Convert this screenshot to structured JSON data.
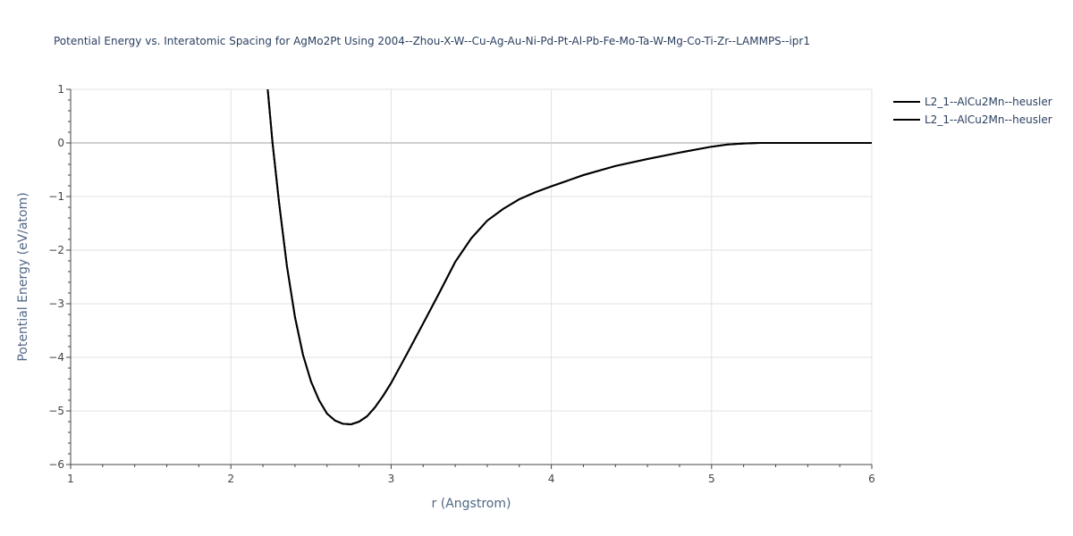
{
  "chart_data": {
    "type": "line",
    "title": "Potential Energy vs. Interatomic Spacing for AgMo2Pt Using 2004--Zhou-X-W--Cu-Ag-Au-Ni-Pd-Pt-Al-Pb-Fe-Mo-Ta-W-Mg-Co-Ti-Zr--LAMMPS--ipr1",
    "xlabel": "r (Angstrom)",
    "ylabel": "Potential Energy (eV/atom)",
    "xlim": [
      1,
      6
    ],
    "ylim": [
      -6,
      1
    ],
    "xticks": [
      1,
      2,
      3,
      4,
      5,
      6
    ],
    "xtick_labels": [
      "1",
      "2",
      "3",
      "4",
      "5",
      "6"
    ],
    "yticks": [
      1,
      0,
      -1,
      -2,
      -3,
      -4,
      -5,
      -6
    ],
    "ytick_labels": [
      "1",
      "0",
      "−1",
      "−2",
      "−3",
      "−4",
      "−5",
      "−6"
    ],
    "grid": true,
    "legend_position": "top-right",
    "series": [
      {
        "name": "L2_1--AlCu2Mn--heusler",
        "color": "#000000",
        "x": [
          2.23,
          2.26,
          2.3,
          2.35,
          2.4,
          2.45,
          2.5,
          2.55,
          2.6,
          2.65,
          2.7,
          2.75,
          2.8,
          2.85,
          2.9,
          2.95,
          3.0,
          3.1,
          3.2,
          3.3,
          3.4,
          3.5,
          3.6,
          3.7,
          3.8,
          3.9,
          4.0,
          4.2,
          4.4,
          4.6,
          4.8,
          5.0,
          5.1,
          5.2,
          5.3,
          5.5,
          5.8,
          6.0
        ],
        "y": [
          1.0,
          0.0,
          -1.1,
          -2.3,
          -3.25,
          -3.95,
          -4.45,
          -4.8,
          -5.05,
          -5.18,
          -5.24,
          -5.25,
          -5.2,
          -5.1,
          -4.93,
          -4.72,
          -4.48,
          -3.93,
          -3.37,
          -2.8,
          -2.22,
          -1.78,
          -1.45,
          -1.23,
          -1.05,
          -0.92,
          -0.81,
          -0.6,
          -0.43,
          -0.3,
          -0.18,
          -0.07,
          -0.03,
          -0.01,
          0.0,
          0.0,
          0.0,
          0.0
        ]
      },
      {
        "name": "L2_1--AlCu2Mn--heusler",
        "color": "#000000",
        "x": [
          2.23,
          2.26,
          2.3,
          2.35,
          2.4,
          2.45,
          2.5,
          2.55,
          2.6,
          2.65,
          2.7,
          2.75,
          2.8,
          2.85,
          2.9,
          2.95,
          3.0,
          3.1,
          3.2,
          3.3,
          3.4,
          3.5,
          3.6,
          3.7,
          3.8,
          3.9,
          4.0,
          4.2,
          4.4,
          4.6,
          4.8,
          5.0,
          5.1,
          5.2,
          5.3,
          5.5,
          5.8,
          6.0
        ],
        "y": [
          1.0,
          0.0,
          -1.1,
          -2.3,
          -3.25,
          -3.95,
          -4.45,
          -4.8,
          -5.05,
          -5.18,
          -5.24,
          -5.25,
          -5.2,
          -5.1,
          -4.93,
          -4.72,
          -4.48,
          -3.93,
          -3.37,
          -2.8,
          -2.22,
          -1.78,
          -1.45,
          -1.23,
          -1.05,
          -0.92,
          -0.81,
          -0.6,
          -0.43,
          -0.3,
          -0.18,
          -0.07,
          -0.03,
          -0.01,
          0.0,
          0.0,
          0.0,
          0.0
        ]
      }
    ]
  }
}
